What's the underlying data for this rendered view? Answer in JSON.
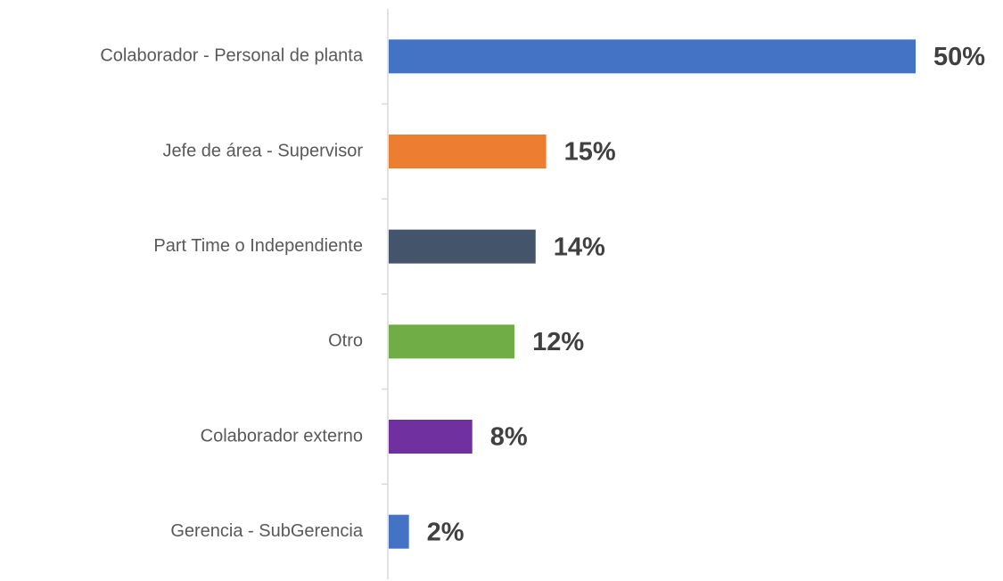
{
  "chart_data": {
    "type": "bar",
    "orientation": "horizontal",
    "categories": [
      "Colaborador - Personal de planta",
      "Jefe de área - Supervisor",
      "Part Time o Independiente",
      "Otro",
      "Colaborador externo",
      "Gerencia - SubGerencia"
    ],
    "values": [
      50,
      15,
      14,
      12,
      8,
      2
    ],
    "value_labels": [
      "50%",
      "15%",
      "14%",
      "12%",
      "8%",
      "2%"
    ],
    "colors": [
      "#4472c4",
      "#ed7d31",
      "#44546a",
      "#70ad47",
      "#7030a0",
      "#4472c4"
    ]
  }
}
